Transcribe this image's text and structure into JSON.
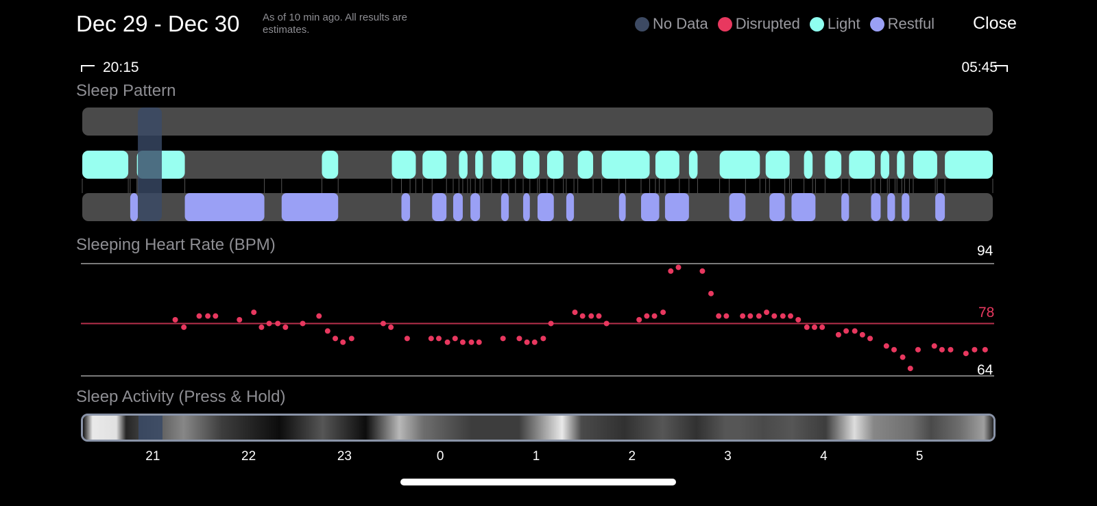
{
  "header": {
    "title": "Dec 29 - Dec 30",
    "note": "As of 10 min ago. All results are estimates.",
    "close_label": "Close"
  },
  "legend": [
    {
      "label": "No Data",
      "color": "#3d4a63"
    },
    {
      "label": "Disrupted",
      "color": "#e8385f"
    },
    {
      "label": "Light",
      "color": "#8ffff0"
    },
    {
      "label": "Restful",
      "color": "#9aa0f5"
    }
  ],
  "time_range": {
    "start": "20:15",
    "end": "05:45"
  },
  "sleep_pattern": {
    "label": "Sleep Pattern",
    "colors": {
      "track": "#4a4a4a",
      "light": "#98fff0",
      "restful": "#9aa0f5",
      "nodata": "#3a4a66"
    },
    "light_segments": [
      [
        20.25,
        20.73
      ],
      [
        20.82,
        21.32
      ],
      [
        22.75,
        22.92
      ],
      [
        23.48,
        23.73
      ],
      [
        23.8,
        24.05
      ],
      [
        24.18,
        24.27
      ],
      [
        24.35,
        24.43
      ],
      [
        24.52,
        24.77
      ],
      [
        24.85,
        25.02
      ],
      [
        25.1,
        25.27
      ],
      [
        25.42,
        25.58
      ],
      [
        25.67,
        26.17
      ],
      [
        26.23,
        26.48
      ],
      [
        26.58,
        26.67
      ],
      [
        26.9,
        27.32
      ],
      [
        27.38,
        27.63
      ],
      [
        27.78,
        27.87
      ],
      [
        28.0,
        28.17
      ],
      [
        28.25,
        28.52
      ],
      [
        28.58,
        28.67
      ],
      [
        28.75,
        28.83
      ],
      [
        28.92,
        29.17
      ],
      [
        29.25,
        29.75
      ]
    ],
    "restful_segments": [
      [
        20.75,
        20.83
      ],
      [
        21.32,
        22.15
      ],
      [
        22.33,
        22.92
      ],
      [
        23.58,
        23.67
      ],
      [
        23.9,
        24.05
      ],
      [
        24.12,
        24.22
      ],
      [
        24.3,
        24.4
      ],
      [
        24.62,
        24.7
      ],
      [
        24.85,
        24.92
      ],
      [
        25.0,
        25.17
      ],
      [
        25.3,
        25.38
      ],
      [
        25.85,
        25.92
      ],
      [
        26.08,
        26.27
      ],
      [
        26.33,
        26.58
      ],
      [
        27.0,
        27.17
      ],
      [
        27.42,
        27.58
      ],
      [
        27.65,
        27.9
      ],
      [
        28.17,
        28.25
      ],
      [
        28.48,
        28.58
      ],
      [
        28.65,
        28.73
      ],
      [
        28.8,
        28.88
      ],
      [
        29.15,
        29.25
      ]
    ],
    "nodata_segments": [
      [
        20.83,
        21.08
      ]
    ]
  },
  "heart_rate": {
    "label": "Sleeping Heart Rate (BPM)",
    "max": "94",
    "avg": "78",
    "min": "64",
    "colors": {
      "dot": "#e8385f",
      "avg_line": "#b8304d",
      "grid": "#7a7a7a"
    }
  },
  "chart_data": {
    "type": "scatter",
    "ylim": [
      64,
      94
    ],
    "xlim": [
      20.25,
      29.75
    ],
    "reference_lines": [
      94,
      78,
      64
    ],
    "series": [
      {
        "x": [
          21.22,
          21.31,
          21.47,
          21.56,
          21.64,
          21.89,
          22.04,
          22.12,
          22.2,
          22.29,
          22.37,
          22.55,
          22.72,
          22.81,
          22.89,
          22.97,
          23.06,
          23.39,
          23.47,
          23.64,
          23.89,
          23.97,
          24.06,
          24.14,
          24.22,
          24.31,
          24.39,
          24.64,
          24.81,
          24.89,
          24.97,
          25.06,
          25.14,
          25.39,
          25.47,
          25.56,
          25.64,
          25.72,
          26.06,
          26.14,
          26.22,
          26.31,
          26.39,
          26.47,
          26.72,
          26.81,
          26.89,
          26.97,
          27.14,
          27.22,
          27.31,
          27.39,
          27.47,
          27.56,
          27.64,
          27.72,
          27.81,
          27.89,
          27.97,
          28.14,
          28.22,
          28.31,
          28.39,
          28.47,
          28.64,
          28.72,
          28.81,
          28.89,
          28.97,
          29.14,
          29.22,
          29.31,
          29.47,
          29.56,
          29.67
        ],
        "y": [
          79,
          77,
          80,
          80,
          80,
          79,
          81,
          77,
          78,
          78,
          77,
          78,
          80,
          76,
          74,
          73,
          74,
          78,
          77,
          74,
          74,
          74,
          73,
          74,
          73,
          73,
          73,
          74,
          74,
          73,
          73,
          74,
          78,
          81,
          80,
          80,
          80,
          78,
          79,
          80,
          80,
          81,
          92,
          93,
          92,
          86,
          80,
          80,
          80,
          80,
          80,
          81,
          80,
          80,
          80,
          79,
          77,
          77,
          77,
          75,
          76,
          76,
          75,
          74,
          72,
          71,
          69,
          66,
          71,
          72,
          71,
          71,
          70,
          71,
          71
        ]
      }
    ]
  },
  "sleep_activity": {
    "label": "Sleep Activity (Press & Hold)",
    "bands": [
      [
        20.35,
        0.95
      ],
      [
        20.6,
        0.92
      ],
      [
        20.7,
        0.15
      ],
      [
        21.3,
        0.55
      ],
      [
        21.7,
        0.25
      ],
      [
        22.3,
        0.05
      ],
      [
        22.75,
        0.35
      ],
      [
        23.2,
        0.05
      ],
      [
        23.55,
        0.75
      ],
      [
        23.8,
        0.45
      ],
      [
        24.3,
        0.25
      ],
      [
        24.8,
        0.25
      ],
      [
        25.25,
        0.95
      ],
      [
        25.45,
        0.3
      ],
      [
        25.9,
        0.2
      ],
      [
        26.3,
        0.35
      ],
      [
        26.65,
        0.2
      ],
      [
        26.95,
        0.35
      ],
      [
        27.1,
        0.35
      ],
      [
        27.35,
        0.3
      ],
      [
        27.65,
        0.35
      ],
      [
        27.8,
        0.3
      ],
      [
        28.0,
        0.25
      ],
      [
        28.3,
        0.9
      ],
      [
        28.5,
        0.55
      ],
      [
        28.9,
        0.45
      ],
      [
        29.1,
        0.3
      ],
      [
        29.4,
        0.45
      ],
      [
        29.65,
        0.65
      ]
    ]
  },
  "x_axis": {
    "ticks": [
      {
        "label": "21",
        "hour": 21
      },
      {
        "label": "22",
        "hour": 22
      },
      {
        "label": "23",
        "hour": 23
      },
      {
        "label": "0",
        "hour": 24
      },
      {
        "label": "1",
        "hour": 25
      },
      {
        "label": "2",
        "hour": 26
      },
      {
        "label": "3",
        "hour": 27
      },
      {
        "label": "4",
        "hour": 28
      },
      {
        "label": "5",
        "hour": 29
      }
    ]
  }
}
